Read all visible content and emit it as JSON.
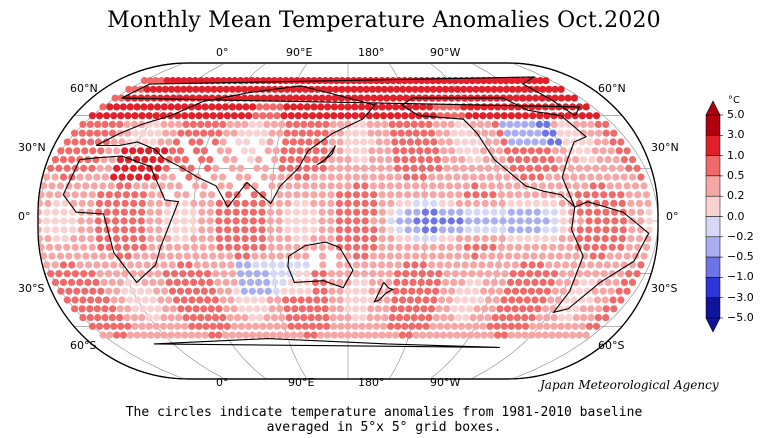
{
  "title": "Monthly Mean Temperature Anomalies Oct.2020",
  "lon_labels_top": [
    "0°",
    "90°E",
    "180°",
    "90°W"
  ],
  "lon_labels_bottom": [
    "0°",
    "90°E",
    "180°",
    "90°W"
  ],
  "lat_labels_left": [
    "60°N",
    "30°N",
    "0°",
    "30°S",
    "60°S"
  ],
  "lat_labels_right": [
    "60°N",
    "30°N",
    "0°",
    "30°S",
    "60°S"
  ],
  "credit": "Japan Meteorological Agency",
  "caption_line1": "The circles indicate temperature anomalies from 1981-2010 baseline",
  "caption_line2": "averaged in 5°x 5° grid boxes.",
  "colorbar": {
    "unit": "°C",
    "ticks": [
      "5.0",
      "3.0",
      "1.0",
      "0.5",
      "0.2",
      "0.0",
      "−0.2",
      "−0.5",
      "−1.0",
      "−3.0",
      "−5.0"
    ],
    "colors": [
      "#b00010",
      "#e0202a",
      "#f06a6a",
      "#f7a6a6",
      "#fbd2d2",
      "#ffffff",
      "#d6d8f6",
      "#a9aef0",
      "#6d74e6",
      "#2f36d8",
      "#10149a"
    ]
  }
}
